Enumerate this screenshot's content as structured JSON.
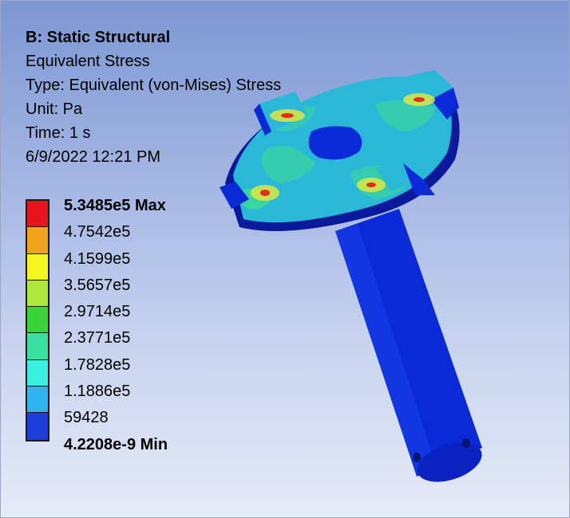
{
  "result": {
    "title": "B: Static Structural",
    "name": "Equivalent Stress",
    "type": "Type: Equivalent (von-Mises) Stress",
    "unit": "Unit: Pa",
    "time": "Time: 1 s",
    "date": "6/9/2022 12:21 PM"
  },
  "legend": {
    "labels": [
      "5.3485e5 Max",
      "4.7542e5",
      "4.1599e5",
      "3.5657e5",
      "2.9714e5",
      "2.3771e5",
      "1.7828e5",
      "1.1886e5",
      "59428",
      "4.2208e-9 Min"
    ],
    "colors": [
      "#e8141c",
      "#f0a51c",
      "#f5f520",
      "#aee83a",
      "#3ad43a",
      "#3ae0a0",
      "#3af0e0",
      "#30b4f0",
      "#1a3cd8"
    ]
  },
  "colors": {
    "min_blue": "#0a2ad8",
    "dark_blue": "#0a1a8a",
    "cyan": "#2ab8d8",
    "green": "#3ad4a0",
    "yellow": "#e8e83a",
    "red": "#e82a1a"
  }
}
